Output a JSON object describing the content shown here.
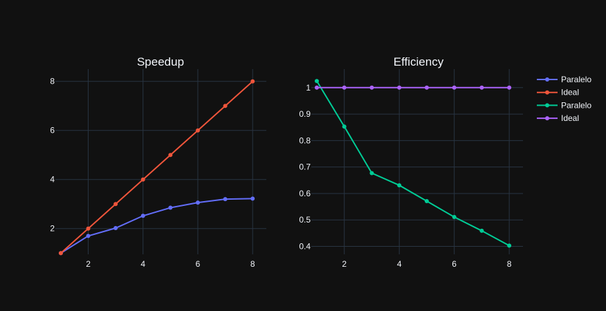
{
  "chart_data": [
    {
      "type": "line",
      "title": "Speedup",
      "xlabel": "",
      "ylabel": "",
      "x": [
        1,
        2,
        3,
        4,
        5,
        6,
        7,
        8
      ],
      "xlim": [
        0.8,
        8.5
      ],
      "ylim": [
        0.95,
        8.5
      ],
      "xticks": [
        2,
        4,
        6,
        8
      ],
      "yticks": [
        2,
        4,
        6,
        8
      ],
      "ytick_labels": [
        "2",
        "4",
        "6",
        "8"
      ],
      "grid": true,
      "series": [
        {
          "name": "Paralelo",
          "color": "#636efa",
          "values": [
            1.0,
            1.7,
            2.02,
            2.52,
            2.85,
            3.06,
            3.2,
            3.22
          ]
        },
        {
          "name": "Ideal",
          "color": "#ef553b",
          "values": [
            1,
            2,
            3,
            4,
            5,
            6,
            7,
            8
          ]
        }
      ]
    },
    {
      "type": "line",
      "title": "Efficiency",
      "xlabel": "",
      "ylabel": "",
      "x": [
        1,
        2,
        3,
        4,
        5,
        6,
        7,
        8
      ],
      "xlim": [
        0.8,
        8.5
      ],
      "ylim": [
        0.37,
        1.07
      ],
      "xticks": [
        2,
        4,
        6,
        8
      ],
      "yticks": [
        0.4,
        0.5,
        0.6,
        0.7,
        0.8,
        0.9,
        1
      ],
      "ytick_labels": [
        "0.4",
        "0.5",
        "0.6",
        "0.7",
        "0.8",
        "0.9",
        "1"
      ],
      "grid": true,
      "series": [
        {
          "name": "Paralelo",
          "color": "#00cc96",
          "values": [
            1.025,
            0.853,
            0.677,
            0.631,
            0.571,
            0.511,
            0.459,
            0.403
          ]
        },
        {
          "name": "Ideal",
          "color": "#ab63fa",
          "values": [
            1,
            1,
            1,
            1,
            1,
            1,
            1,
            1
          ]
        }
      ]
    }
  ],
  "legend": {
    "position": "top-right",
    "items": [
      {
        "label": "Paralelo",
        "color": "#636efa"
      },
      {
        "label": "Ideal",
        "color": "#ef553b"
      },
      {
        "label": "Paralelo",
        "color": "#00cc96"
      },
      {
        "label": "Ideal",
        "color": "#ab63fa"
      }
    ]
  }
}
